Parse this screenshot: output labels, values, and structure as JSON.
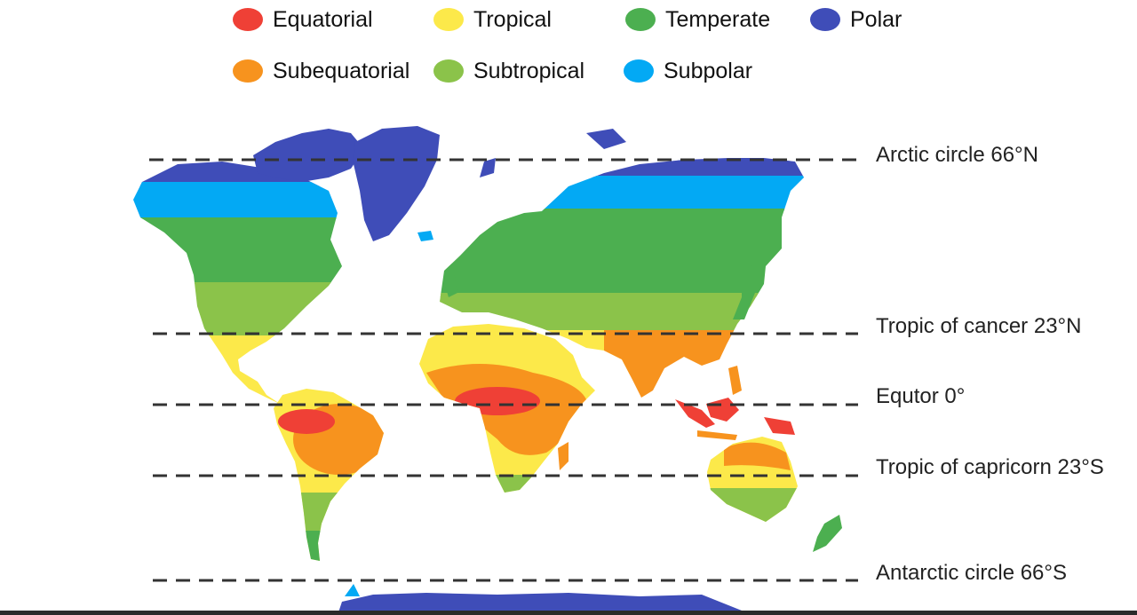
{
  "legend": {
    "items": [
      {
        "label": "Equatorial",
        "color": "#EF4036"
      },
      {
        "label": "Tropical",
        "color": "#FCE94A"
      },
      {
        "label": "Temperate",
        "color": "#4CAF50"
      },
      {
        "label": "Polar",
        "color": "#3F4DB8"
      },
      {
        "label": "Subequatorial",
        "color": "#F7931E"
      },
      {
        "label": "Subtropical",
        "color": "#8BC34A"
      },
      {
        "label": "Subpolar",
        "color": "#03A9F4"
      }
    ]
  },
  "latitudes": {
    "arctic": "Arctic circle 66°N",
    "cancer": "Tropic of cancer 23°N",
    "equator": "Equtor 0°",
    "capricorn": "Tropic of capricorn 23°S",
    "antarctic": "Antarctic circle 66°S"
  }
}
